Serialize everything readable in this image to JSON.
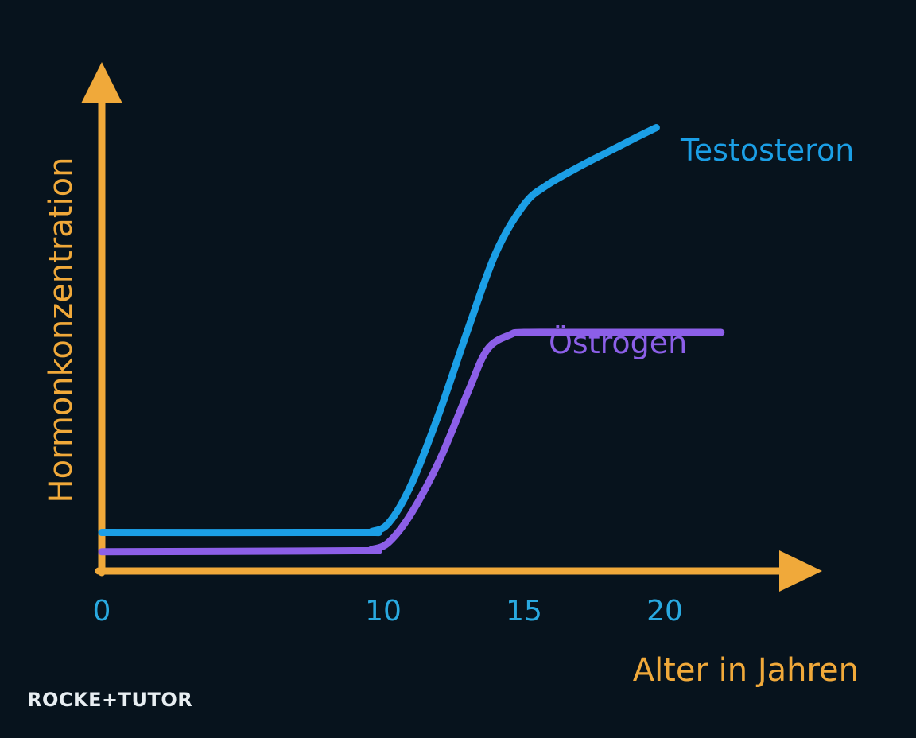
{
  "chart_data": {
    "type": "line",
    "xlabel": "Alter in Jahren",
    "ylabel": "Hormonkonzentration",
    "xlim": [
      0,
      25
    ],
    "ylim": [
      0,
      100
    ],
    "x_ticks": [
      "0",
      "10",
      "15",
      "20"
    ],
    "grid": false,
    "legend": "inline labels at line ends",
    "series": [
      {
        "name": "Testosteron",
        "color": "#1b9fe6",
        "x": [
          0,
          9,
          9.6,
          10.2,
          11,
          12,
          13,
          14,
          15,
          15.8,
          17,
          18,
          19,
          19.7
        ],
        "y": [
          8,
          8,
          8.2,
          10,
          18,
          33,
          50,
          66,
          76,
          80,
          84,
          87,
          90,
          92
        ]
      },
      {
        "name": "Östrogen",
        "color": "#8c5fe8",
        "x": [
          0,
          9,
          9.6,
          10.2,
          11,
          12,
          13,
          13.7,
          14.5,
          15,
          17,
          20,
          22
        ],
        "y": [
          4,
          4.2,
          4.5,
          6,
          12,
          23,
          37,
          46,
          49,
          49.5,
          49.5,
          49.5,
          49.5
        ]
      }
    ],
    "axis_color": "#f0a93a",
    "tick_color": "#29a9e0"
  },
  "brand": {
    "text": "ROCKE+TUTOR"
  }
}
